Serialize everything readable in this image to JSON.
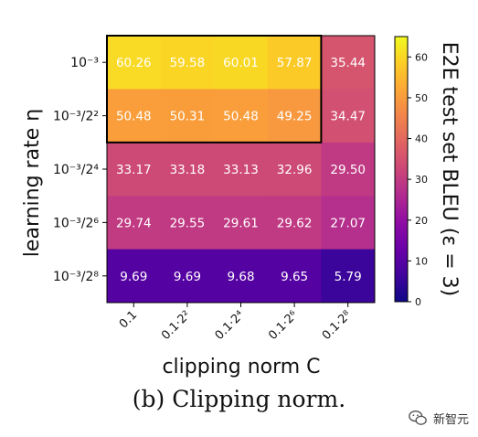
{
  "chart_data": {
    "type": "heatmap",
    "xlabel": "clipping norm C",
    "ylabel": "learning rate η",
    "x_ticks": [
      "0.1",
      "0.1·2²",
      "0.1·2⁴",
      "0.1·2⁶",
      "0.1·2⁸"
    ],
    "y_ticks": [
      "10⁻³",
      "10⁻³/2²",
      "10⁻³/2⁴",
      "10⁻³/2⁶",
      "10⁻³/2⁸"
    ],
    "values": [
      [
        60.26,
        59.58,
        60.01,
        57.87,
        35.44
      ],
      [
        50.48,
        50.31,
        50.48,
        49.25,
        34.47
      ],
      [
        33.17,
        33.18,
        33.13,
        32.96,
        29.5
      ],
      [
        29.74,
        29.55,
        29.61,
        29.62,
        27.07
      ],
      [
        9.69,
        9.69,
        9.68,
        9.65,
        5.79
      ]
    ],
    "value_labels": [
      [
        "60.26",
        "59.58",
        "60.01",
        "57.87",
        "35.44"
      ],
      [
        "50.48",
        "50.31",
        "50.48",
        "49.25",
        "34.47"
      ],
      [
        "33.17",
        "33.18",
        "33.13",
        "32.96",
        "29.50"
      ],
      [
        "29.74",
        "29.55",
        "29.61",
        "29.62",
        "27.07"
      ],
      [
        "9.69",
        "9.69",
        "9.68",
        "9.65",
        "5.79"
      ]
    ],
    "colorbar": {
      "label": "E2E test set BLEU (ε = 3)",
      "range": [
        0,
        65
      ],
      "ticks": [
        0,
        10,
        20,
        30,
        40,
        50,
        60
      ],
      "tick_labels": [
        "0",
        "10",
        "20",
        "30",
        "40",
        "50",
        "60"
      ],
      "colormap": "plasma"
    },
    "highlight_box": {
      "rows": [
        0,
        1
      ],
      "cols": [
        0,
        3
      ],
      "color": "#000000"
    }
  },
  "caption": "(b) Clipping norm.",
  "watermark": "新智元"
}
